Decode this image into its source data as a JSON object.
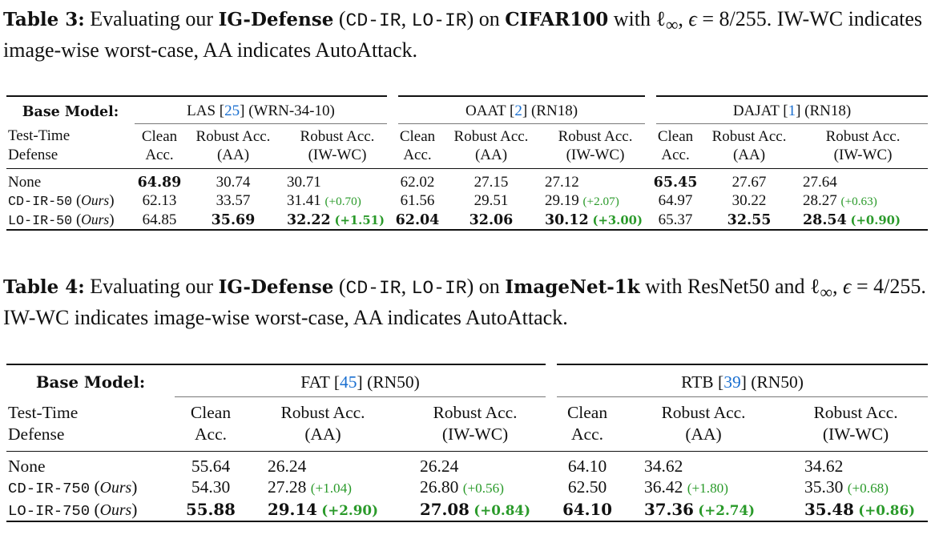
{
  "table3": {
    "caption": [
      {
        "t": "Table 3:",
        "s": "b"
      },
      {
        "t": " Evaluating our "
      },
      {
        "t": "IG-Defense",
        "s": "b"
      },
      {
        "t": " ("
      },
      {
        "t": "CD-IR",
        "s": "m"
      },
      {
        "t": ", "
      },
      {
        "t": "LO-IR",
        "s": "m"
      },
      {
        "t": ") on "
      },
      {
        "t": "CIFAR100",
        "s": "b"
      },
      {
        "t": " with ℓ"
      },
      {
        "t": "∞",
        "s": "sub"
      },
      {
        "t": ", "
      },
      {
        "t": "ϵ",
        "s": "i"
      },
      {
        "t": " = 8/255. IW-WC indicates image-wise worst-case, AA indicates AutoAttack."
      }
    ],
    "base_label": "Base Model:",
    "groups": [
      {
        "name": "LAS",
        "cite": "25",
        "arch": "(WRN-34-10)"
      },
      {
        "name": "OAAT",
        "cite": "2",
        "arch": "(RN18)"
      },
      {
        "name": "DAJAT",
        "cite": "1",
        "arch": "(RN18)"
      }
    ],
    "row_header": [
      "Test-Time",
      "Defense"
    ],
    "col_headers": [
      [
        "Clean",
        "Acc."
      ],
      [
        "Robust Acc.",
        "(AA)"
      ],
      [
        "Robust Acc.",
        "(IW-WC)"
      ]
    ],
    "rows": [
      {
        "method": "None",
        "cells": [
          {
            "v": "64.89",
            "b": true
          },
          {
            "v": "30.74"
          },
          {
            "v": "30.71"
          },
          {
            "v": "62.02"
          },
          {
            "v": "27.15"
          },
          {
            "v": "27.12"
          },
          {
            "v": "65.45",
            "b": true
          },
          {
            "v": "27.67"
          },
          {
            "v": "27.64"
          }
        ]
      },
      {
        "method": "CD-IR-50",
        "note": "Ours",
        "cells": [
          {
            "v": "62.13"
          },
          {
            "v": "33.57"
          },
          {
            "v": "31.41",
            "d": "(+0.70)"
          },
          {
            "v": "61.56"
          },
          {
            "v": "29.51"
          },
          {
            "v": "29.19",
            "d": "(+2.07)"
          },
          {
            "v": "64.97"
          },
          {
            "v": "30.22"
          },
          {
            "v": "28.27",
            "d": "(+0.63)"
          }
        ]
      },
      {
        "method": "LO-IR-50",
        "note": "Ours",
        "cells": [
          {
            "v": "64.85"
          },
          {
            "v": "35.69",
            "b": true
          },
          {
            "v": "32.22",
            "b": true,
            "d": "(+1.51)"
          },
          {
            "v": "62.04",
            "b": true
          },
          {
            "v": "32.06",
            "b": true
          },
          {
            "v": "30.12",
            "b": true,
            "d": "(+3.00)"
          },
          {
            "v": "65.37"
          },
          {
            "v": "32.55",
            "b": true
          },
          {
            "v": "28.54",
            "b": true,
            "d": "(+0.90)"
          }
        ]
      }
    ]
  },
  "table4": {
    "caption": [
      {
        "t": "Table 4:",
        "s": "b"
      },
      {
        "t": " Evaluating our "
      },
      {
        "t": "IG-Defense",
        "s": "b"
      },
      {
        "t": " ("
      },
      {
        "t": "CD-IR",
        "s": "m"
      },
      {
        "t": ", "
      },
      {
        "t": "LO-IR",
        "s": "m"
      },
      {
        "t": ") on "
      },
      {
        "t": "ImageNet-1k",
        "s": "b"
      },
      {
        "t": " with ResNet50 and ℓ"
      },
      {
        "t": "∞",
        "s": "sub"
      },
      {
        "t": ", "
      },
      {
        "t": "ϵ",
        "s": "i"
      },
      {
        "t": " = 4/255. IW-WC indicates image-wise worst-case, AA indicates AutoAttack."
      }
    ],
    "base_label": "Base Model:",
    "groups": [
      {
        "name": "FAT",
        "cite": "45",
        "arch": "(RN50)"
      },
      {
        "name": "RTB",
        "cite": "39",
        "arch": "(RN50)"
      }
    ],
    "row_header": [
      "Test-Time",
      "Defense"
    ],
    "col_headers": [
      [
        "Clean",
        "Acc."
      ],
      [
        "Robust Acc.",
        "(AA)"
      ],
      [
        "Robust Acc.",
        "(IW-WC)"
      ]
    ],
    "rows": [
      {
        "method": "None",
        "cells": [
          {
            "v": "55.64"
          },
          {
            "v": "26.24"
          },
          {
            "v": "26.24"
          },
          {
            "v": "64.10"
          },
          {
            "v": "34.62"
          },
          {
            "v": "34.62"
          }
        ]
      },
      {
        "method": "CD-IR-750",
        "note": "Ours",
        "cells": [
          {
            "v": "54.30"
          },
          {
            "v": "27.28",
            "d": "(+1.04)"
          },
          {
            "v": "26.80",
            "d": "(+0.56)"
          },
          {
            "v": "62.50"
          },
          {
            "v": "36.42",
            "d": "(+1.80)"
          },
          {
            "v": "35.30",
            "d": "(+0.68)"
          }
        ]
      },
      {
        "method": "LO-IR-750",
        "note": "Ours",
        "cells": [
          {
            "v": "55.88",
            "b": true
          },
          {
            "v": "29.14",
            "b": true,
            "d": "(+2.90)"
          },
          {
            "v": "27.08",
            "b": true,
            "d": "(+0.84)"
          },
          {
            "v": "64.10",
            "b": true
          },
          {
            "v": "37.36",
            "b": true,
            "d": "(+2.74)"
          },
          {
            "v": "35.48",
            "b": true,
            "d": "(+0.86)"
          }
        ]
      }
    ]
  }
}
